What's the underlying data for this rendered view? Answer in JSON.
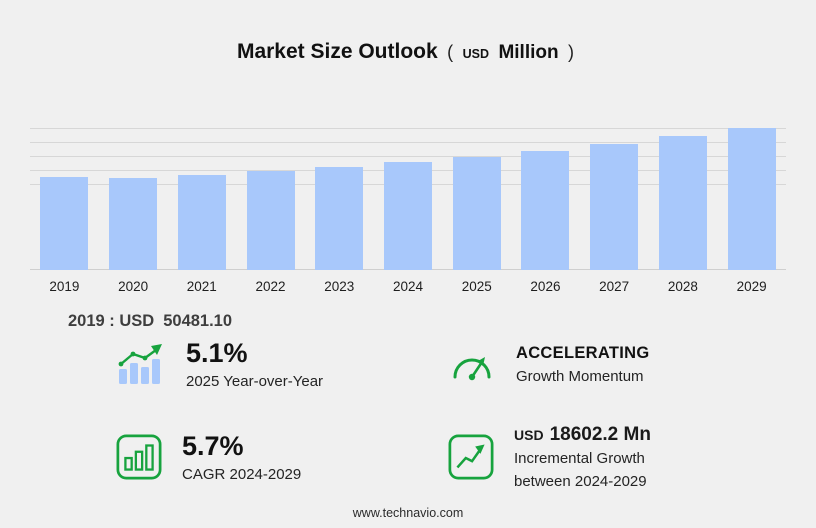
{
  "title": {
    "main": "Market Size Outlook",
    "paren_open": "(",
    "unit_small": "USD",
    "unit_large": "Million",
    "paren_close": ")"
  },
  "chart_data": {
    "type": "bar",
    "title": "Market Size Outlook (USD Million)",
    "categories": [
      "2019",
      "2020",
      "2021",
      "2022",
      "2023",
      "2024",
      "2025",
      "2026",
      "2027",
      "2028",
      "2029"
    ],
    "values": [
      50481.1,
      49900,
      51200,
      53300,
      55800,
      58300,
      61300,
      64300,
      68000,
      72300,
      76900
    ],
    "xlabel": "",
    "ylabel": "",
    "ylim": [
      0,
      80000
    ],
    "grid": true,
    "legend": false,
    "bar_color": "#a8c8fb"
  },
  "callout": {
    "label": "2019 : USD",
    "value": "50481.10"
  },
  "stats": [
    {
      "icon": "yoy-bars-arrow-icon",
      "value": "5.1%",
      "label": "2025 Year-over-Year"
    },
    {
      "icon": "speedometer-icon",
      "value": "ACCELERATING",
      "label": "Growth Momentum"
    },
    {
      "icon": "cagr-bars-icon",
      "value": "5.7%",
      "label": "CAGR 2024-2029"
    },
    {
      "icon": "incremental-growth-icon",
      "value_prefix": "USD",
      "value": "18602.2 Mn",
      "label_line1": "Incremental Growth",
      "label_line2": "between 2024-2029"
    }
  ],
  "footer": {
    "website": "www.technavio.com"
  },
  "colors": {
    "accent_green": "#17a33e",
    "bar_blue": "#a8c8fb",
    "background": "#f0f0f0",
    "gridline": "#d7d7d7"
  }
}
